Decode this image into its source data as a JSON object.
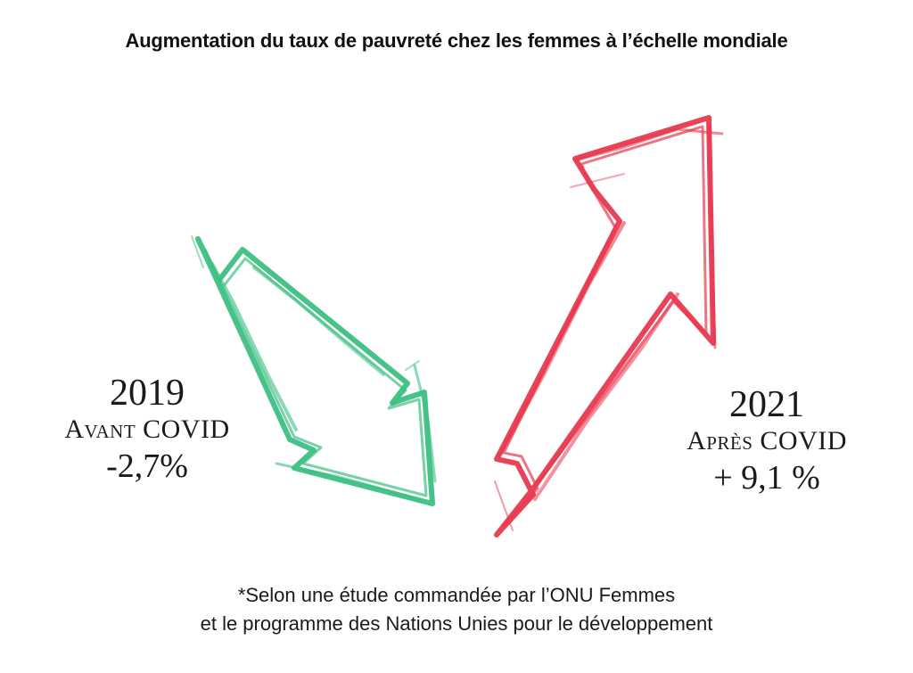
{
  "title": "Augmentation du taux de pauvreté chez les femmes à l’échelle mondiale",
  "before": {
    "year": "2019",
    "label": "Avant COVID",
    "value": "-2,7%",
    "color": "#3dbf82",
    "direction": "down"
  },
  "after": {
    "year": "2021",
    "label": "Après COVID",
    "value": "+ 9,1 %",
    "color": "#e8394f",
    "direction": "up"
  },
  "footnote": {
    "line1": "*Selon une étude commandée par l’ONU Femmes",
    "line2": "et le programme des Nations Unies pour le développement"
  }
}
